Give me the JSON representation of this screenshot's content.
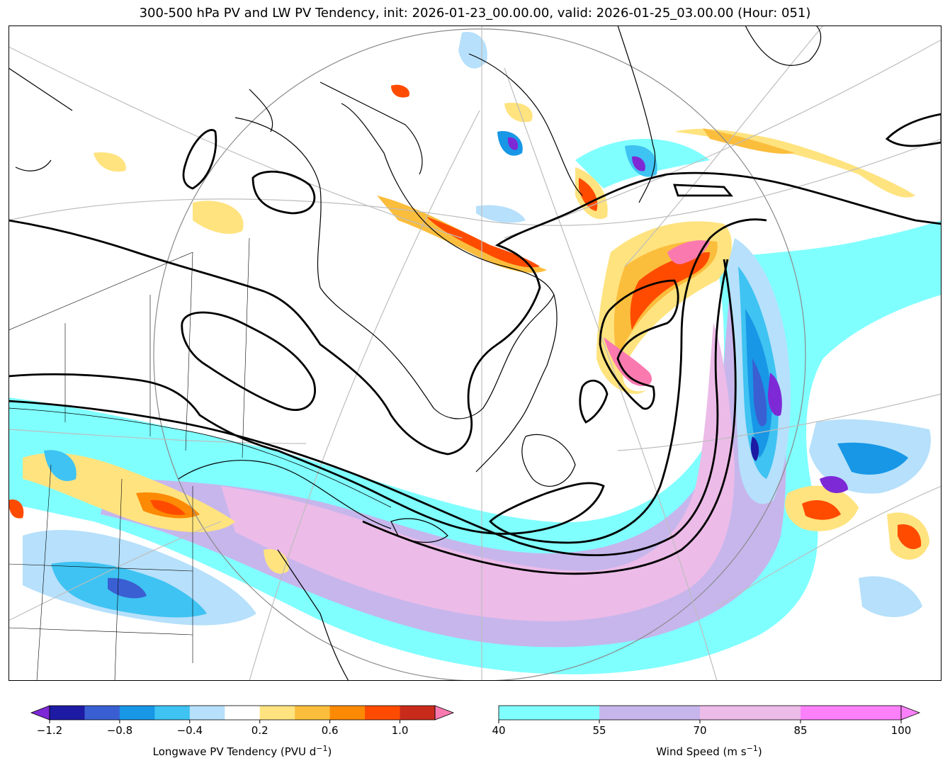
{
  "title": "300-500 hPa PV and LW PV Tendency, init: 2026-01-23_00.00.00, valid: 2026-01-25_03.00.00 (Hour: 051)",
  "pv_colorbar": {
    "label_text": "Longwave PV Tendency (PVU d",
    "label_exp": "−1",
    "label_close": ")",
    "colors": [
      "#7e29d6",
      "#1d1ba3",
      "#3a5fd2",
      "#1797e6",
      "#3ec3f2",
      "#b6e0fb",
      "#ffffff",
      "#ffe37f",
      "#fbbd3c",
      "#fd8a05",
      "#ff4b00",
      "#c92b1b",
      "#fa7ab0"
    ],
    "ticks": [
      "−1.2",
      "−0.8",
      "−0.4",
      "0.2",
      "0.6",
      "1.0"
    ],
    "tick_levels": [
      -1.2,
      -0.8,
      -0.4,
      0.2,
      0.6,
      1.0
    ],
    "levels": [
      -1.2,
      -1.0,
      -0.8,
      -0.6,
      -0.4,
      -0.2,
      0.2,
      0.4,
      0.6,
      0.8,
      1.0,
      1.2
    ]
  },
  "wind_colorbar": {
    "label_text": "Wind Speed (m s",
    "label_exp": "−1",
    "label_close": ")",
    "colors": [
      "#80ffff",
      "#c6b6ec",
      "#ecbbe8",
      "#fd80fb"
    ],
    "ticks": [
      "40",
      "55",
      "70",
      "85",
      "100"
    ],
    "levels": [
      40,
      55,
      70,
      85,
      100
    ]
  }
}
